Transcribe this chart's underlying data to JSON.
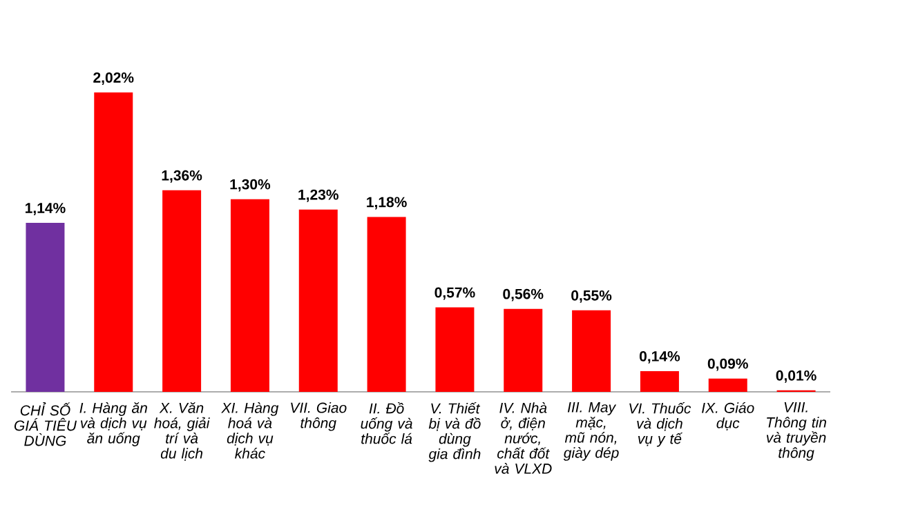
{
  "chart_data": {
    "type": "bar",
    "categories": [
      "CHỈ SỐ GIÁ TIÊU DÙNG",
      "I. Hàng ăn và dịch vụ ăn uống",
      "X. Văn hoá, giải trí và du lịch",
      "XI. Hàng hoá và dịch vụ khác",
      "VII. Giao thông",
      "II. Đồ uống và thuốc lá",
      "V. Thiết bị và đồ dùng gia đình",
      "IV. Nhà ở, điện nước, chất đốt và VLXD",
      "III. May mặc, mũ nón, giày dép",
      "VI. Thuốc và dịch vụ y tế",
      "IX. Giáo dục",
      "VIII. Thông tin và truyền thông"
    ],
    "values": [
      1.14,
      2.02,
      1.36,
      1.3,
      1.23,
      1.18,
      0.57,
      0.56,
      0.55,
      0.14,
      0.09,
      0.01
    ],
    "colors": [
      "#7030a0",
      "#ff0000",
      "#ff0000",
      "#ff0000",
      "#ff0000",
      "#ff0000",
      "#ff0000",
      "#ff0000",
      "#ff0000",
      "#ff0000",
      "#ff0000",
      "#ff0000"
    ],
    "value_labels": [
      "1,14%",
      "2,02%",
      "1,36%",
      "1,30%",
      "1,23%",
      "1,18%",
      "0,57%",
      "0,56%",
      "0,55%",
      "0,14%",
      "0,09%",
      "0,01%"
    ],
    "tick_labels": "x"
  }
}
